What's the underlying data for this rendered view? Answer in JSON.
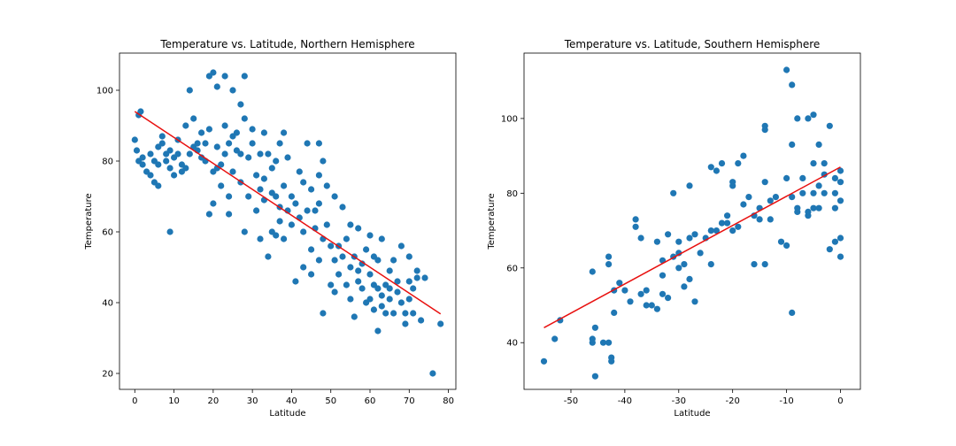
{
  "chart_data": [
    {
      "type": "scatter",
      "title": "Temperature vs. Latitude, Northern Hemisphere",
      "xlabel": "Latitude",
      "ylabel": "Temperature",
      "xlim": [
        -3.9,
        81.9
      ],
      "ylim": [
        15.5,
        110.5
      ],
      "xticks": [
        0,
        10,
        20,
        30,
        40,
        50,
        60,
        70,
        80
      ],
      "yticks": [
        20,
        40,
        60,
        80,
        100
      ],
      "point_color": "#1f77b4",
      "fit_color": "#e8100f",
      "regression": {
        "x": [
          0,
          78
        ],
        "y": [
          94,
          36.8
        ]
      },
      "points": [
        [
          0,
          86
        ],
        [
          0.5,
          83
        ],
        [
          1,
          93
        ],
        [
          1,
          80
        ],
        [
          1.5,
          94
        ],
        [
          2,
          79
        ],
        [
          2,
          81
        ],
        [
          3,
          77
        ],
        [
          4,
          82
        ],
        [
          4,
          76
        ],
        [
          5,
          74
        ],
        [
          5,
          80
        ],
        [
          6,
          73
        ],
        [
          6,
          79
        ],
        [
          6,
          84
        ],
        [
          7,
          85
        ],
        [
          7,
          87
        ],
        [
          8,
          80
        ],
        [
          8,
          82
        ],
        [
          9,
          78
        ],
        [
          9,
          83
        ],
        [
          9,
          60
        ],
        [
          10,
          81
        ],
        [
          10,
          76
        ],
        [
          11,
          86
        ],
        [
          11,
          82
        ],
        [
          12,
          77
        ],
        [
          12,
          79
        ],
        [
          13,
          90
        ],
        [
          13,
          78
        ],
        [
          14,
          100
        ],
        [
          14,
          82
        ],
        [
          15,
          92
        ],
        [
          15,
          84
        ],
        [
          16,
          83
        ],
        [
          16,
          85
        ],
        [
          17,
          81
        ],
        [
          17,
          88
        ],
        [
          18,
          85
        ],
        [
          18,
          80
        ],
        [
          19,
          104
        ],
        [
          19,
          65
        ],
        [
          19,
          89
        ],
        [
          20,
          105
        ],
        [
          20,
          77
        ],
        [
          20,
          68
        ],
        [
          21,
          101
        ],
        [
          21,
          84
        ],
        [
          21,
          78
        ],
        [
          22,
          73
        ],
        [
          22,
          79
        ],
        [
          23,
          104
        ],
        [
          23,
          90
        ],
        [
          23,
          82
        ],
        [
          24,
          85
        ],
        [
          24,
          70
        ],
        [
          24,
          65
        ],
        [
          25,
          100
        ],
        [
          25,
          87
        ],
        [
          25,
          77
        ],
        [
          26,
          88
        ],
        [
          26,
          83
        ],
        [
          27,
          96
        ],
        [
          27,
          74
        ],
        [
          27,
          82
        ],
        [
          28,
          104
        ],
        [
          28,
          92
        ],
        [
          28,
          60
        ],
        [
          29,
          81
        ],
        [
          29,
          70
        ],
        [
          30,
          85
        ],
        [
          30,
          89
        ],
        [
          31,
          76
        ],
        [
          31,
          66
        ],
        [
          32,
          82
        ],
        [
          32,
          72
        ],
        [
          32,
          58
        ],
        [
          33,
          88
        ],
        [
          33,
          75
        ],
        [
          33,
          69
        ],
        [
          34,
          53
        ],
        [
          34,
          82
        ],
        [
          35,
          78
        ],
        [
          35,
          60
        ],
        [
          35,
          71
        ],
        [
          36,
          80
        ],
        [
          36,
          59
        ],
        [
          36,
          70
        ],
        [
          37,
          85
        ],
        [
          37,
          67
        ],
        [
          37,
          63
        ],
        [
          38,
          88
        ],
        [
          38,
          73
        ],
        [
          38,
          58
        ],
        [
          39,
          81
        ],
        [
          39,
          66
        ],
        [
          40,
          62
        ],
        [
          40,
          70
        ],
        [
          41,
          68
        ],
        [
          41,
          46
        ],
        [
          42,
          77
        ],
        [
          42,
          64
        ],
        [
          43,
          74
        ],
        [
          43,
          50
        ],
        [
          43,
          60
        ],
        [
          44,
          85
        ],
        [
          44,
          66
        ],
        [
          45,
          72
        ],
        [
          45,
          55
        ],
        [
          45,
          48
        ],
        [
          46,
          61
        ],
        [
          46,
          66
        ],
        [
          47,
          85
        ],
        [
          47,
          76
        ],
        [
          47,
          52
        ],
        [
          47,
          68
        ],
        [
          48,
          80
        ],
        [
          48,
          37
        ],
        [
          48,
          58
        ],
        [
          49,
          73
        ],
        [
          49,
          62
        ],
        [
          50,
          45
        ],
        [
          50,
          56
        ],
        [
          51,
          70
        ],
        [
          51,
          43
        ],
        [
          51,
          52
        ],
        [
          52,
          48
        ],
        [
          52,
          56
        ],
        [
          53,
          67
        ],
        [
          53,
          53
        ],
        [
          54,
          58
        ],
        [
          54,
          45
        ],
        [
          55,
          62
        ],
        [
          55,
          50
        ],
        [
          55,
          41
        ],
        [
          56,
          36
        ],
        [
          56,
          53
        ],
        [
          57,
          61
        ],
        [
          57,
          46
        ],
        [
          57,
          49
        ],
        [
          58,
          44
        ],
        [
          58,
          51
        ],
        [
          59,
          40
        ],
        [
          59,
          55
        ],
        [
          60,
          41
        ],
        [
          60,
          59
        ],
        [
          60,
          48
        ],
        [
          61,
          45
        ],
        [
          61,
          53
        ],
        [
          61,
          38
        ],
        [
          62,
          32
        ],
        [
          62,
          44
        ],
        [
          62,
          52
        ],
        [
          63,
          42
        ],
        [
          63,
          58
        ],
        [
          63,
          39
        ],
        [
          64,
          45
        ],
        [
          64,
          37
        ],
        [
          65,
          49
        ],
        [
          65,
          41
        ],
        [
          65,
          44
        ],
        [
          66,
          52
        ],
        [
          66,
          37
        ],
        [
          67,
          43
        ],
        [
          67,
          46
        ],
        [
          68,
          40
        ],
        [
          68,
          56
        ],
        [
          69,
          34
        ],
        [
          69,
          37
        ],
        [
          70,
          46
        ],
        [
          70,
          53
        ],
        [
          70,
          41
        ],
        [
          71,
          44
        ],
        [
          71,
          37
        ],
        [
          72,
          47
        ],
        [
          72,
          49
        ],
        [
          73,
          35
        ],
        [
          74,
          47
        ],
        [
          76,
          20
        ],
        [
          78,
          34
        ]
      ]
    },
    {
      "type": "scatter",
      "title": "Temperature vs. Latitude, Southern Hemisphere",
      "xlabel": "Latitude",
      "ylabel": "Temperature",
      "xlim": [
        -58.7,
        3.7
      ],
      "ylim": [
        27.5,
        117.5
      ],
      "xticks": [
        -50,
        -40,
        -30,
        -20,
        -10,
        0
      ],
      "yticks": [
        40,
        60,
        80,
        100
      ],
      "point_color": "#1f77b4",
      "fit_color": "#e8100f",
      "regression": {
        "x": [
          -55,
          0
        ],
        "y": [
          44,
          87
        ]
      },
      "points": [
        [
          -55,
          35
        ],
        [
          -53,
          41
        ],
        [
          -52,
          46
        ],
        [
          -46,
          59
        ],
        [
          -46,
          40
        ],
        [
          -46,
          41
        ],
        [
          -45.5,
          31
        ],
        [
          -45.5,
          44
        ],
        [
          -44,
          40
        ],
        [
          -43,
          40
        ],
        [
          -43,
          63
        ],
        [
          -43,
          61
        ],
        [
          -42.5,
          36
        ],
        [
          -42.5,
          35
        ],
        [
          -42,
          54
        ],
        [
          -42,
          48
        ],
        [
          -41,
          56
        ],
        [
          -40,
          54
        ],
        [
          -39,
          51
        ],
        [
          -38,
          73
        ],
        [
          -38,
          71
        ],
        [
          -37,
          68
        ],
        [
          -37,
          53
        ],
        [
          -36,
          54
        ],
        [
          -36,
          50
        ],
        [
          -35,
          50
        ],
        [
          -34,
          49
        ],
        [
          -34,
          67
        ],
        [
          -33,
          62
        ],
        [
          -33,
          58
        ],
        [
          -33,
          53
        ],
        [
          -32,
          52
        ],
        [
          -32,
          69
        ],
        [
          -31,
          63
        ],
        [
          -31,
          80
        ],
        [
          -30,
          64
        ],
        [
          -30,
          67
        ],
        [
          -30,
          60
        ],
        [
          -29,
          61
        ],
        [
          -29,
          55
        ],
        [
          -28,
          68
        ],
        [
          -28,
          82
        ],
        [
          -28,
          57
        ],
        [
          -27,
          69
        ],
        [
          -27,
          51
        ],
        [
          -26,
          64
        ],
        [
          -25,
          68
        ],
        [
          -24,
          70
        ],
        [
          -24,
          61
        ],
        [
          -24,
          87
        ],
        [
          -23,
          70
        ],
        [
          -23,
          86
        ],
        [
          -22,
          72
        ],
        [
          -22,
          88
        ],
        [
          -21,
          74
        ],
        [
          -21,
          72
        ],
        [
          -20,
          70
        ],
        [
          -20,
          83
        ],
        [
          -20,
          82
        ],
        [
          -19,
          71
        ],
        [
          -19,
          88
        ],
        [
          -18,
          77
        ],
        [
          -18,
          90
        ],
        [
          -17,
          79
        ],
        [
          -16,
          74
        ],
        [
          -16,
          61
        ],
        [
          -15,
          73
        ],
        [
          -15,
          76
        ],
        [
          -14,
          97
        ],
        [
          -14,
          98
        ],
        [
          -14,
          61
        ],
        [
          -14,
          83
        ],
        [
          -13,
          78
        ],
        [
          -13,
          73
        ],
        [
          -12,
          79
        ],
        [
          -11,
          67
        ],
        [
          -10,
          113
        ],
        [
          -10,
          66
        ],
        [
          -10,
          84
        ],
        [
          -9,
          109
        ],
        [
          -9,
          93
        ],
        [
          -9,
          48
        ],
        [
          -9,
          79
        ],
        [
          -8,
          100
        ],
        [
          -8,
          76
        ],
        [
          -8,
          75
        ],
        [
          -7,
          84
        ],
        [
          -7,
          80
        ],
        [
          -6,
          100
        ],
        [
          -6,
          74
        ],
        [
          -6,
          75
        ],
        [
          -5,
          101
        ],
        [
          -5,
          88
        ],
        [
          -5,
          80
        ],
        [
          -5,
          76
        ],
        [
          -4,
          82
        ],
        [
          -4,
          93
        ],
        [
          -4,
          76
        ],
        [
          -3,
          80
        ],
        [
          -3,
          88
        ],
        [
          -3,
          85
        ],
        [
          -2,
          98
        ],
        [
          -2,
          65
        ],
        [
          -1,
          76
        ],
        [
          -1,
          80
        ],
        [
          -1,
          84
        ],
        [
          -1,
          67
        ],
        [
          0,
          78
        ],
        [
          0,
          83
        ],
        [
          0,
          63
        ],
        [
          0,
          86
        ],
        [
          0,
          68
        ]
      ]
    }
  ]
}
